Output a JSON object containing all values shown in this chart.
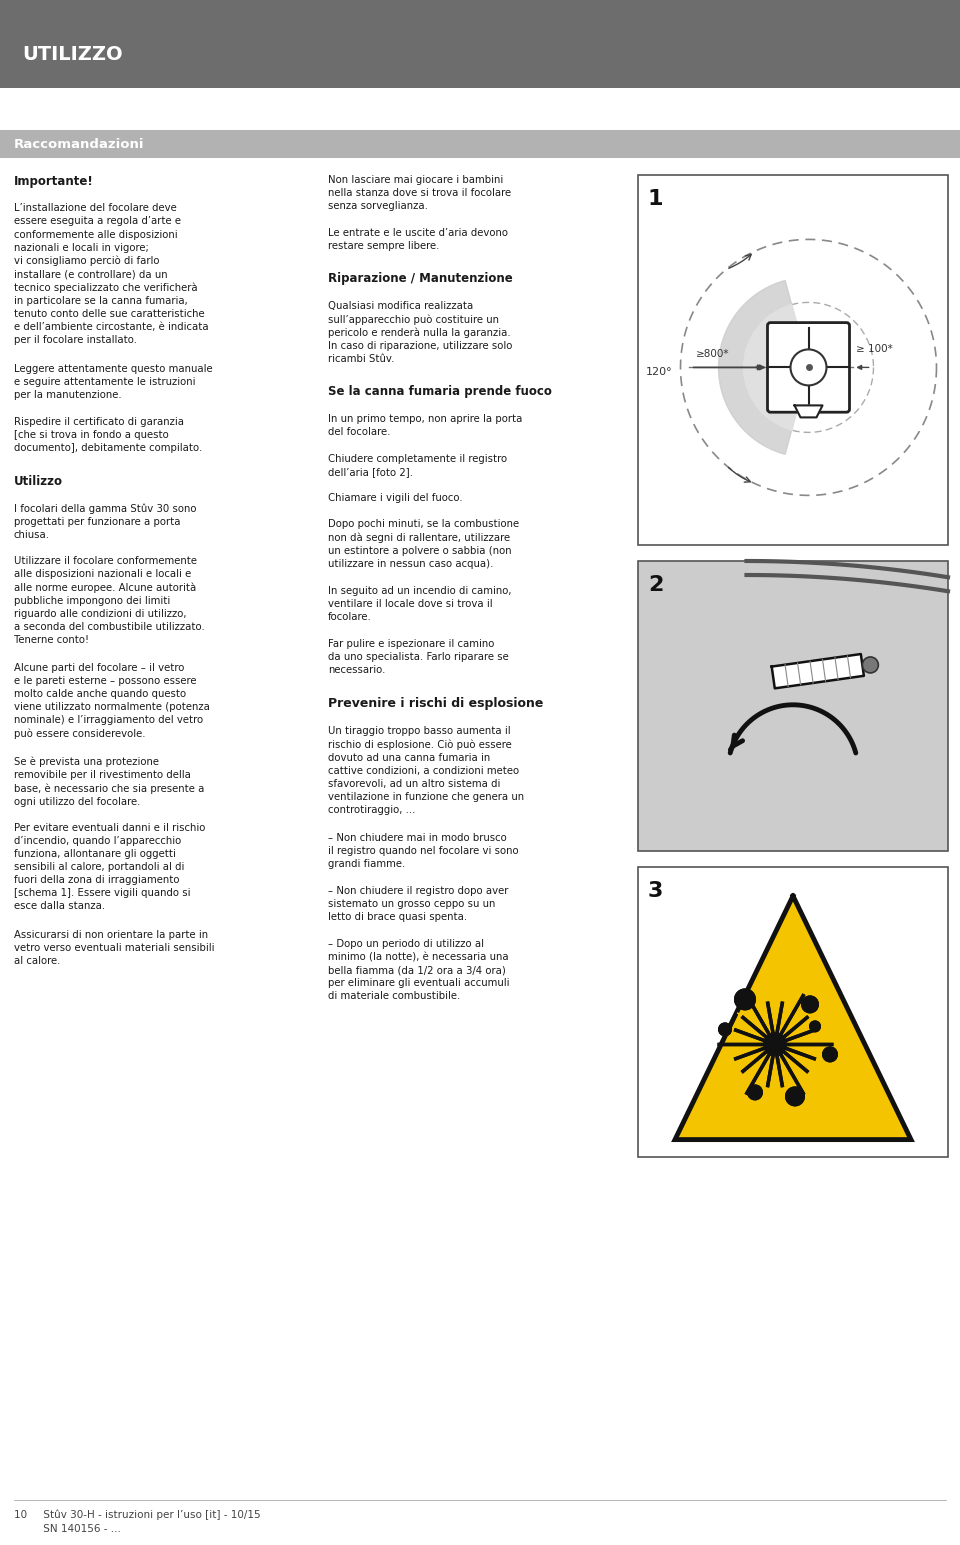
{
  "page_bg": "#ffffff",
  "header_bg": "#6d6d6d",
  "header_text": "UTILIZZO",
  "header_text_color": "#ffffff",
  "section_bar_bg": "#b2b2b2",
  "section_bar_text": "Raccomandazioni",
  "section_bar_text_color": "#ffffff",
  "body_color": "#1a1a1a",
  "col1_entries": [
    {
      "text": "Importante!",
      "bold": true,
      "size": 8.5,
      "pre": 0.0
    },
    {
      "text": "L’installazione del focolare deve\nessere eseguita a regola d’arte e\nconformemente alle disposizioni\nnazionali e locali in vigore;\nvi consigliamo perciò di farlo\ninstallare (e controllare) da un\ntecnico specializzato che verificherà\nin particolare se la canna fumaria,\ntenuto conto delle sue caratteristiche\ne dell’ambiente circostante, è indicata\nper il focolare installato.",
      "bold": false,
      "size": 7.3,
      "pre": 0.007
    },
    {
      "text": "Leggere attentamente questo manuale\ne seguire attentamente le istruzioni\nper la manutenzione.",
      "bold": false,
      "size": 7.3,
      "pre": 0.007
    },
    {
      "text": "Rispedire il certificato di garanzia\n[che si trova in fondo a questo\ndocumento], debitamente compilato.",
      "bold": false,
      "size": 7.3,
      "pre": 0.007
    },
    {
      "text": "Utilizzo",
      "bold": true,
      "size": 8.5,
      "pre": 0.01
    },
    {
      "text": "I focolari della gamma Stûv 30 sono\nprogettati per funzionare a porta\nchiusa.",
      "bold": false,
      "size": 7.3,
      "pre": 0.007
    },
    {
      "text": "Utilizzare il focolare conformemente\nalle disposizioni nazionali e locali e\nalle norme europee. Alcune autorità\npubbliche impongono dei limiti\nriguardo alle condizioni di utilizzo,\na seconda del combustibile utilizzato.\nTenerne conto!",
      "bold": false,
      "size": 7.3,
      "pre": 0.007
    },
    {
      "text": "Alcune parti del focolare – il vetro\ne le pareti esterne – possono essere\nmolto calde anche quando questo\nviene utilizzato normalmente (potenza\nnominale) e l’irraggiamento del vetro\npuò essere considerevole.",
      "bold": false,
      "size": 7.3,
      "pre": 0.007
    },
    {
      "text": "Se è prevista una protezione\nremovibile per il rivestimento della\nbase, è necessario che sia presente a\nogni utilizzo del focolare.",
      "bold": false,
      "size": 7.3,
      "pre": 0.007
    },
    {
      "text": "Per evitare eventuali danni e il rischio\nd’incendio, quando l’apparecchio\nfunziona, allontanare gli oggetti\nsensibili al calore, portandoli al di\nfuori della zona di irraggiamento\n[schema 1]. Essere vigili quando si\nesce dalla stanza.",
      "bold": false,
      "size": 7.3,
      "pre": 0.007
    },
    {
      "text": "Assicurarsi di non orientare la parte in\nvetro verso eventuali materiali sensibili\nal calore.",
      "bold": false,
      "size": 7.3,
      "pre": 0.007
    }
  ],
  "col2_entries": [
    {
      "text": "Non lasciare mai giocare i bambini\nnella stanza dove si trova il focolare\nsenza sorveglianza.",
      "bold": false,
      "size": 7.3,
      "pre": 0.0
    },
    {
      "text": "Le entrate e le uscite d’aria devono\nrestare sempre libere.",
      "bold": false,
      "size": 7.3,
      "pre": 0.007
    },
    {
      "text": "Riparazione / Manutenzione",
      "bold": true,
      "size": 8.5,
      "pre": 0.01
    },
    {
      "text": "Qualsiasi modifica realizzata\nsull’apparecchio può costituire un\npericolo e renderà nulla la garanzia.\nIn caso di riparazione, utilizzare solo\nricambi Stûv.",
      "bold": false,
      "size": 7.3,
      "pre": 0.007
    },
    {
      "text": "Se la canna fumaria prende fuoco",
      "bold": true,
      "size": 8.5,
      "pre": 0.01
    },
    {
      "text": "In un primo tempo, non aprire la porta\ndel focolare.",
      "bold": false,
      "size": 7.3,
      "pre": 0.007
    },
    {
      "text": "Chiudere completamente il registro\ndell’aria [foto 2].",
      "bold": false,
      "size": 7.3,
      "pre": 0.007
    },
    {
      "text": "Chiamare i vigili del fuoco.",
      "bold": false,
      "size": 7.3,
      "pre": 0.007
    },
    {
      "text": "Dopo pochi minuti, se la combustione\nnon dà segni di rallentare, utilizzare\nun estintore a polvere o sabbia (non\nutilizzare in nessun caso acqua).",
      "bold": false,
      "size": 7.3,
      "pre": 0.007
    },
    {
      "text": "In seguito ad un incendio di camino,\nventilare il locale dove si trova il\nfocolare.",
      "bold": false,
      "size": 7.3,
      "pre": 0.007
    },
    {
      "text": "Far pulire e ispezionare il camino\nda uno specialista. Farlo riparare se\nnecessario.",
      "bold": false,
      "size": 7.3,
      "pre": 0.007
    },
    {
      "text": "Prevenire i rischi di esplosione",
      "bold": true,
      "size": 9.0,
      "pre": 0.01
    },
    {
      "text": "Un tiraggio troppo basso aumenta il\nrischio di esplosione. Ciò può essere\ndovuto ad una canna fumaria in\ncattive condizioni, a condizioni meteo\nsfavorevoli, ad un altro sistema di\nventilazione in funzione che genera un\ncontrotiraggio, ...",
      "bold": false,
      "size": 7.3,
      "pre": 0.007
    },
    {
      "text": "– Non chiudere mai in modo brusco\nil registro quando nel focolare vi sono\ngrandi fiamme.",
      "bold": false,
      "size": 7.3,
      "pre": 0.007
    },
    {
      "text": "– Non chiudere il registro dopo aver\nsistemato un grosso ceppo su un\nletto di brace quasi spenta.",
      "bold": false,
      "size": 7.3,
      "pre": 0.007
    },
    {
      "text": "– Dopo un periodo di utilizzo al\nminimo (la notte), è necessaria una\nbella fiamma (da 1/2 ora a 3/4 ora)\nper eliminare gli eventuali accumuli\ndi materiale combustibile.",
      "bold": false,
      "size": 7.3,
      "pre": 0.007
    }
  ],
  "footer_line1": "10     Stûv 30-H - istruzioni per l’uso [it] - 10/15",
  "footer_line2": "         SN 140156 - ..."
}
